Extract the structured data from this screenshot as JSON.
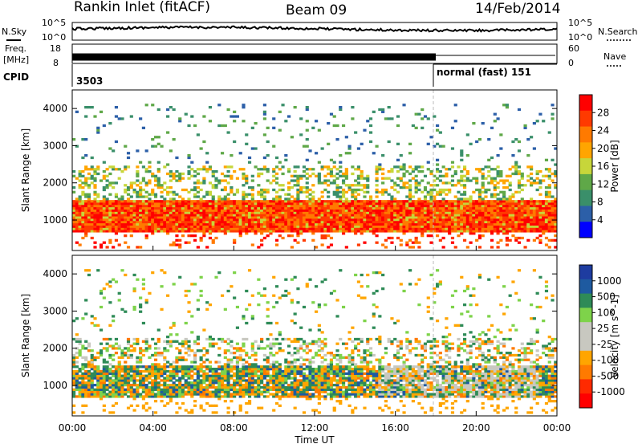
{
  "header": {
    "site": "Rankin Inlet (fitACF)",
    "beam": "Beam 09",
    "date": "14/Feb/2014"
  },
  "strips": {
    "nsky_label": "N.Sky",
    "nsearch_label": "N.Search",
    "noise_ticks": [
      "10^5",
      "10^0"
    ],
    "freq_label": "Freq.",
    "freq_unit": "[MHz]",
    "freq_ticks": [
      "18",
      "8"
    ],
    "nave_label": "Nave",
    "nave_ticks": [
      "60",
      "0"
    ],
    "cpid_label": "CPID",
    "cpid_1": "3503",
    "cpid_2": "normal (fast) 151",
    "cpid_change_hour": 18
  },
  "colors": {
    "power_scale": [
      "#0000ff",
      "#2c5fa8",
      "#3a8f6a",
      "#5fa848",
      "#c7d63a",
      "#ffa500",
      "#ff7a00",
      "#ff3a00",
      "#ff0000"
    ],
    "velocity_scale": [
      "#1e3ca0",
      "#1e5aa0",
      "#2e8b57",
      "#7ed34a",
      "#c8c8c0",
      "#c8c8c0",
      "#ffa500",
      "#ff7a00",
      "#ff2a00",
      "#ff0000"
    ]
  },
  "chart_data": [
    {
      "type": "heatmap",
      "quantity": "Power",
      "ylabel": "Slant Range [km]",
      "ylim": [
        180,
        4500
      ],
      "yticks": [
        "1000",
        "2000",
        "3000",
        "4000"
      ],
      "colorbar_label": "Power [dB]",
      "colorbar_ticks": [
        "28",
        "24",
        "20",
        "16",
        "12",
        "8",
        "4"
      ],
      "xlim_hours": [
        0,
        24
      ],
      "bands": [
        {
          "range_km": [
            700,
            1500
          ],
          "coverage": "near-continuous 00:00-24:00",
          "value_db": "24-30"
        },
        {
          "range_km": [
            1800,
            2400
          ],
          "coverage": "patchy",
          "value_db": "12-20"
        },
        {
          "range_km": [
            2600,
            4000
          ],
          "coverage": "sparse",
          "value_db": "4-12"
        }
      ]
    },
    {
      "type": "heatmap",
      "quantity": "Velocity",
      "ylabel": "Slant Range [km]",
      "ylim": [
        180,
        4500
      ],
      "yticks": [
        "1000",
        "2000",
        "3000",
        "4000"
      ],
      "colorbar_label": "Velocity [m s^-1]",
      "colorbar_ticks": [
        "1000",
        "500",
        "100",
        "25",
        "-25",
        "-100",
        "-500",
        "-1000"
      ],
      "xlim_hours": [
        0,
        24
      ],
      "xlabel": "Time UT",
      "xticks": [
        "00:00",
        "04:00",
        "08:00",
        "12:00",
        "16:00",
        "20:00",
        "00:00"
      ]
    }
  ]
}
